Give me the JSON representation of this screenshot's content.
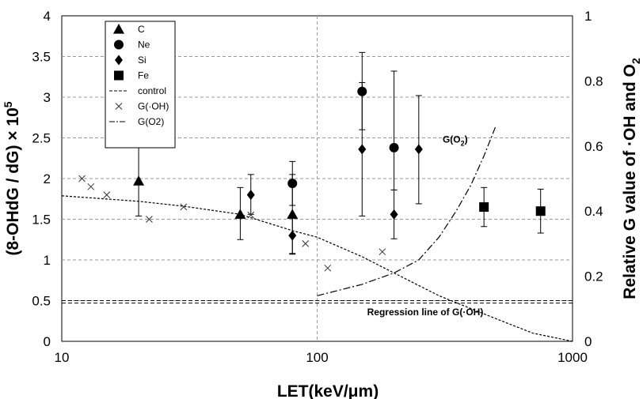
{
  "chart_data": {
    "type": "scatter",
    "x_axis": {
      "title": "LET(keV/μm)",
      "scale": "log",
      "range": [
        10,
        1000
      ],
      "ticks": [
        10,
        100,
        1000
      ],
      "tick_labels": [
        "10",
        "100",
        "1000"
      ]
    },
    "y_axis_left": {
      "title_main": "(8-OHdG / dG) × 10",
      "title_sup": "5",
      "range": [
        0,
        4
      ],
      "ticks": [
        0,
        0.5,
        1,
        1.5,
        2,
        2.5,
        3,
        3.5,
        4
      ],
      "tick_labels": [
        "0",
        "0.5",
        "1",
        "1.5",
        "2",
        "2.5",
        "3",
        "3.5",
        "4"
      ]
    },
    "y_axis_right": {
      "title_main": "Relative G value of ·OH and O",
      "title_sub": "2",
      "range": [
        0,
        1
      ],
      "ticks": [
        0,
        0.2,
        0.4,
        0.6,
        0.8,
        1
      ],
      "tick_labels": [
        "0",
        "0.2",
        "0.4",
        "0.6",
        "0.8",
        "1"
      ]
    },
    "grid": {
      "horizontal": "dashed",
      "vertical_at_x": 100
    },
    "legend": {
      "position": "top-left",
      "entries": [
        {
          "label": "C",
          "marker": "triangle"
        },
        {
          "label": "Ne",
          "marker": "circle"
        },
        {
          "label": "Si",
          "marker": "diamond"
        },
        {
          "label": "Fe",
          "marker": "square"
        },
        {
          "label": "control",
          "marker": "dashed-line"
        },
        {
          "label": "G(·OH)",
          "marker": "cross"
        },
        {
          "label": "G(O2)",
          "marker": "dashdot-line"
        }
      ]
    },
    "series": [
      {
        "name": "C",
        "marker": "triangle",
        "axis": "left",
        "points": [
          {
            "x": 20,
            "y": 1.97,
            "err_low": 1.54,
            "err_high": 2.42
          },
          {
            "x": 50,
            "y": 1.56,
            "err_low": 1.25,
            "err_high": 1.89
          },
          {
            "x": 80,
            "y": 1.56,
            "err_low": 1.08,
            "err_high": 2.05
          }
        ]
      },
      {
        "name": "Ne",
        "marker": "circle",
        "axis": "left",
        "points": [
          {
            "x": 80,
            "y": 1.94,
            "err_low": 1.67,
            "err_high": 2.21
          },
          {
            "x": 150,
            "y": 3.07,
            "err_low": 2.6,
            "err_high": 3.55
          },
          {
            "x": 200,
            "y": 2.38,
            "err_low": 1.86,
            "err_high": 3.32
          }
        ]
      },
      {
        "name": "Si",
        "marker": "diamond",
        "axis": "left",
        "points": [
          {
            "x": 55,
            "y": 1.8,
            "err_low": 1.56,
            "err_high": 2.05
          },
          {
            "x": 80,
            "y": 1.3,
            "err_low": 1.07,
            "err_high": 1.53
          },
          {
            "x": 150,
            "y": 2.36,
            "err_low": 1.54,
            "err_high": 3.18
          },
          {
            "x": 200,
            "y": 1.56,
            "err_low": 1.26,
            "err_high": 1.86
          },
          {
            "x": 250,
            "y": 2.36,
            "err_low": 1.69,
            "err_high": 3.02
          }
        ]
      },
      {
        "name": "Fe",
        "marker": "square",
        "axis": "left",
        "points": [
          {
            "x": 450,
            "y": 1.65,
            "err_low": 1.41,
            "err_high": 1.89
          },
          {
            "x": 750,
            "y": 1.6,
            "err_low": 1.33,
            "err_high": 1.87
          }
        ]
      },
      {
        "name": "control",
        "style": "dashed-line",
        "axis": "left",
        "y_band": [
          0.47,
          0.5
        ]
      },
      {
        "name": "G(·OH)",
        "marker": "cross",
        "axis": "right",
        "points": [
          {
            "x": 12,
            "y": 0.5
          },
          {
            "x": 13,
            "y": 0.475
          },
          {
            "x": 15,
            "y": 0.45
          },
          {
            "x": 22,
            "y": 0.375
          },
          {
            "x": 30,
            "y": 0.413
          },
          {
            "x": 55,
            "y": 0.388
          },
          {
            "x": 90,
            "y": 0.3
          },
          {
            "x": 110,
            "y": 0.225
          },
          {
            "x": 180,
            "y": 0.275
          }
        ]
      },
      {
        "name": "Regression line of G(·OH)",
        "style": "dotted-line",
        "axis": "right",
        "points": [
          {
            "x": 10,
            "y": 0.447
          },
          {
            "x": 20,
            "y": 0.43
          },
          {
            "x": 30,
            "y": 0.415
          },
          {
            "x": 50,
            "y": 0.39
          },
          {
            "x": 80,
            "y": 0.34
          },
          {
            "x": 100,
            "y": 0.32
          },
          {
            "x": 150,
            "y": 0.26
          },
          {
            "x": 200,
            "y": 0.21
          },
          {
            "x": 300,
            "y": 0.14
          },
          {
            "x": 500,
            "y": 0.07
          },
          {
            "x": 700,
            "y": 0.025
          },
          {
            "x": 1000,
            "y": 0.0
          }
        ]
      },
      {
        "name": "G(O2)",
        "style": "dashdot-line",
        "axis": "right",
        "points": [
          {
            "x": 100,
            "y": 0.14
          },
          {
            "x": 150,
            "y": 0.175
          },
          {
            "x": 200,
            "y": 0.21
          },
          {
            "x": 250,
            "y": 0.25
          },
          {
            "x": 300,
            "y": 0.32
          },
          {
            "x": 350,
            "y": 0.4
          },
          {
            "x": 400,
            "y": 0.48
          },
          {
            "x": 450,
            "y": 0.57
          },
          {
            "x": 500,
            "y": 0.66
          }
        ]
      }
    ],
    "annotations": [
      {
        "text_main": "G(O",
        "text_sub": "2",
        "text_tail": ")",
        "x": 310,
        "y_right": 0.61
      },
      {
        "text": "Regression line of G(·OH)",
        "x": 265,
        "y_right": 0.08
      }
    ]
  }
}
